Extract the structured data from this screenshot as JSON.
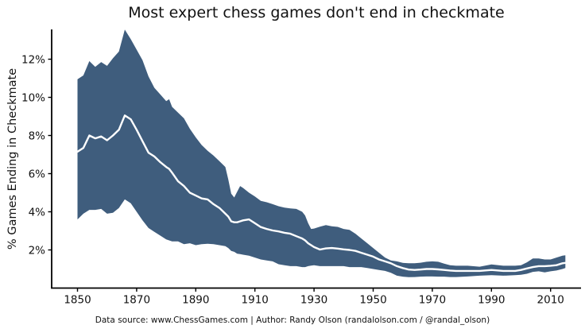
{
  "page": {
    "background": "#ffffff"
  },
  "chart_data": {
    "type": "area",
    "title": "Most expert chess games don't end in checkmate",
    "xlabel": "",
    "ylabel": "% Games Ending in Checkmate",
    "source": "Data source: www.ChessGames.com | Author: Randy Olson (randalolson.com / @randal_olson)",
    "legend": null,
    "grid": false,
    "xlim": [
      1841.3,
      2020.3
    ],
    "ylim": [
      0,
      13.56
    ],
    "x_ticks": [
      1850,
      1870,
      1890,
      1910,
      1930,
      1950,
      1970,
      1990,
      2010
    ],
    "y_ticks": [
      {
        "value": 2,
        "label": "2%"
      },
      {
        "value": 4,
        "label": "4%"
      },
      {
        "value": 6,
        "label": "6%"
      },
      {
        "value": 8,
        "label": "8%"
      },
      {
        "value": 10,
        "label": "10%"
      },
      {
        "value": 12,
        "label": "12%"
      }
    ],
    "colors": {
      "band": "#3F5D7D",
      "mean_line": "#FFFFFF",
      "axis": "#000000",
      "text": "#111111"
    },
    "x": [
      1850,
      1852,
      1854,
      1856,
      1858,
      1860,
      1862,
      1864,
      1866,
      1868,
      1870,
      1872,
      1874,
      1876,
      1878,
      1880,
      1881,
      1882,
      1884,
      1886,
      1888,
      1890,
      1892,
      1894,
      1896,
      1898,
      1900,
      1901,
      1902,
      1903,
      1904,
      1905,
      1906,
      1908,
      1910,
      1912,
      1914,
      1916,
      1918,
      1920,
      1922,
      1924,
      1926,
      1927,
      1928,
      1929,
      1930,
      1932,
      1934,
      1936,
      1938,
      1940,
      1942,
      1944,
      1946,
      1948,
      1950,
      1952,
      1954,
      1956,
      1958,
      1960,
      1962,
      1964,
      1966,
      1968,
      1970,
      1972,
      1974,
      1976,
      1978,
      1982,
      1986,
      1990,
      1994,
      1998,
      2000,
      2002,
      2004,
      2006,
      2008,
      2010,
      2012,
      2014,
      2015
    ],
    "series": [
      {
        "name": "mean % games ending in checkmate",
        "values": [
          7.15,
          7.35,
          8.0,
          7.85,
          7.95,
          7.75,
          8.0,
          8.3,
          9.05,
          8.85,
          8.3,
          7.7,
          7.1,
          6.9,
          6.6,
          6.35,
          6.25,
          6.05,
          5.6,
          5.35,
          5.0,
          4.85,
          4.7,
          4.65,
          4.4,
          4.2,
          3.9,
          3.75,
          3.5,
          3.45,
          3.45,
          3.5,
          3.55,
          3.6,
          3.4,
          3.2,
          3.1,
          3.02,
          2.97,
          2.9,
          2.85,
          2.72,
          2.6,
          2.5,
          2.35,
          2.25,
          2.15,
          2.02,
          2.08,
          2.1,
          2.07,
          2.03,
          2.0,
          1.95,
          1.85,
          1.75,
          1.65,
          1.5,
          1.4,
          1.3,
          1.15,
          1.05,
          0.97,
          0.95,
          0.97,
          1.0,
          1.0,
          0.98,
          0.95,
          0.92,
          0.9,
          0.9,
          0.9,
          0.95,
          0.9,
          0.9,
          0.95,
          1.03,
          1.1,
          1.15,
          1.15,
          1.17,
          1.2,
          1.3,
          1.32
        ]
      },
      {
        "name": "upper band bound",
        "values": [
          10.95,
          11.15,
          11.9,
          11.6,
          11.85,
          11.65,
          12.05,
          12.4,
          13.55,
          13.05,
          12.5,
          11.95,
          11.1,
          10.5,
          10.15,
          9.8,
          9.9,
          9.5,
          9.2,
          8.9,
          8.35,
          7.9,
          7.5,
          7.2,
          6.95,
          6.65,
          6.35,
          5.7,
          4.95,
          4.75,
          5.05,
          5.35,
          5.25,
          5.0,
          4.8,
          4.57,
          4.5,
          4.4,
          4.29,
          4.22,
          4.18,
          4.15,
          4.0,
          3.8,
          3.4,
          3.1,
          3.12,
          3.22,
          3.3,
          3.24,
          3.21,
          3.1,
          3.05,
          2.85,
          2.6,
          2.35,
          2.1,
          1.85,
          1.6,
          1.45,
          1.4,
          1.32,
          1.3,
          1.3,
          1.33,
          1.38,
          1.4,
          1.38,
          1.28,
          1.2,
          1.17,
          1.17,
          1.12,
          1.24,
          1.17,
          1.17,
          1.2,
          1.35,
          1.55,
          1.55,
          1.5,
          1.5,
          1.6,
          1.7,
          1.72
        ]
      },
      {
        "name": "lower band bound",
        "values": [
          3.6,
          3.9,
          4.1,
          4.1,
          4.15,
          3.9,
          3.95,
          4.2,
          4.65,
          4.45,
          4.0,
          3.55,
          3.15,
          2.95,
          2.75,
          2.55,
          2.5,
          2.45,
          2.45,
          2.3,
          2.35,
          2.25,
          2.3,
          2.32,
          2.3,
          2.25,
          2.2,
          2.1,
          1.95,
          1.9,
          1.8,
          1.78,
          1.75,
          1.7,
          1.6,
          1.5,
          1.45,
          1.4,
          1.25,
          1.2,
          1.15,
          1.15,
          1.1,
          1.1,
          1.15,
          1.18,
          1.2,
          1.15,
          1.15,
          1.15,
          1.15,
          1.15,
          1.1,
          1.1,
          1.1,
          1.05,
          1.0,
          0.95,
          0.9,
          0.8,
          0.65,
          0.6,
          0.57,
          0.58,
          0.6,
          0.61,
          0.61,
          0.6,
          0.6,
          0.58,
          0.58,
          0.61,
          0.65,
          0.68,
          0.65,
          0.68,
          0.7,
          0.75,
          0.85,
          0.88,
          0.82,
          0.88,
          0.92,
          1.0,
          1.05
        ]
      }
    ]
  }
}
